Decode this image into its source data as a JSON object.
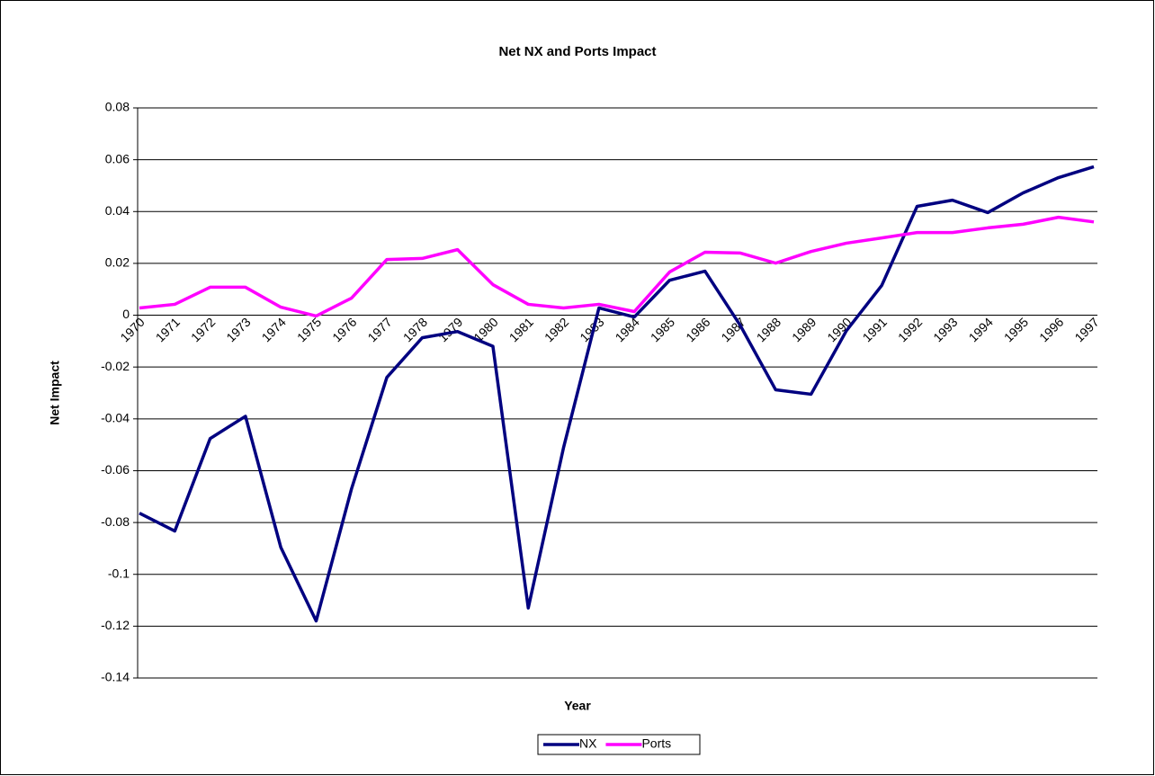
{
  "chart_data": {
    "type": "line",
    "title": "Net NX and Ports Impact",
    "x_label": "Year",
    "y_label": "Net Impact",
    "categories": [
      "1970",
      "1971",
      "1972",
      "1973",
      "1974",
      "1975",
      "1976",
      "1977",
      "1978",
      "1979",
      "1980",
      "1981",
      "1982",
      "1983",
      "1984",
      "1985",
      "1986",
      "1987",
      "1988",
      "1989",
      "1990",
      "1991",
      "1992",
      "1993",
      "1994",
      "1995",
      "1996",
      "1997"
    ],
    "series": [
      {
        "name": "NX",
        "color": "#000080",
        "values": [
          -0.0764,
          -0.0833,
          -0.0476,
          -0.039,
          -0.0896,
          -0.118,
          -0.067,
          -0.024,
          -0.0087,
          -0.0063,
          -0.012,
          -0.113,
          -0.051,
          0.0028,
          -0.0007,
          0.0135,
          0.017,
          -0.004,
          -0.0288,
          -0.0305,
          -0.006,
          0.0115,
          0.042,
          0.0444,
          0.0396,
          0.0472,
          0.0531,
          0.0573
        ]
      },
      {
        "name": "Ports",
        "color": "#ff00ff",
        "values": [
          0.0028,
          0.0042,
          0.0108,
          0.0108,
          0.0031,
          -0.0003,
          0.0066,
          0.0215,
          0.0219,
          0.0253,
          0.0118,
          0.0042,
          0.0028,
          0.0042,
          0.0014,
          0.0167,
          0.0243,
          0.024,
          0.0201,
          0.0246,
          0.0278,
          0.0298,
          0.0319,
          0.0319,
          0.0337,
          0.0351,
          0.0378,
          0.036
        ]
      }
    ],
    "ylim": [
      -0.14,
      0.08
    ],
    "yticks": [
      0.08,
      0.06,
      0.04,
      0.02,
      0,
      -0.02,
      -0.04,
      -0.06,
      -0.08,
      -0.1,
      -0.12,
      -0.14
    ],
    "grid": true,
    "legend": "bottom"
  }
}
